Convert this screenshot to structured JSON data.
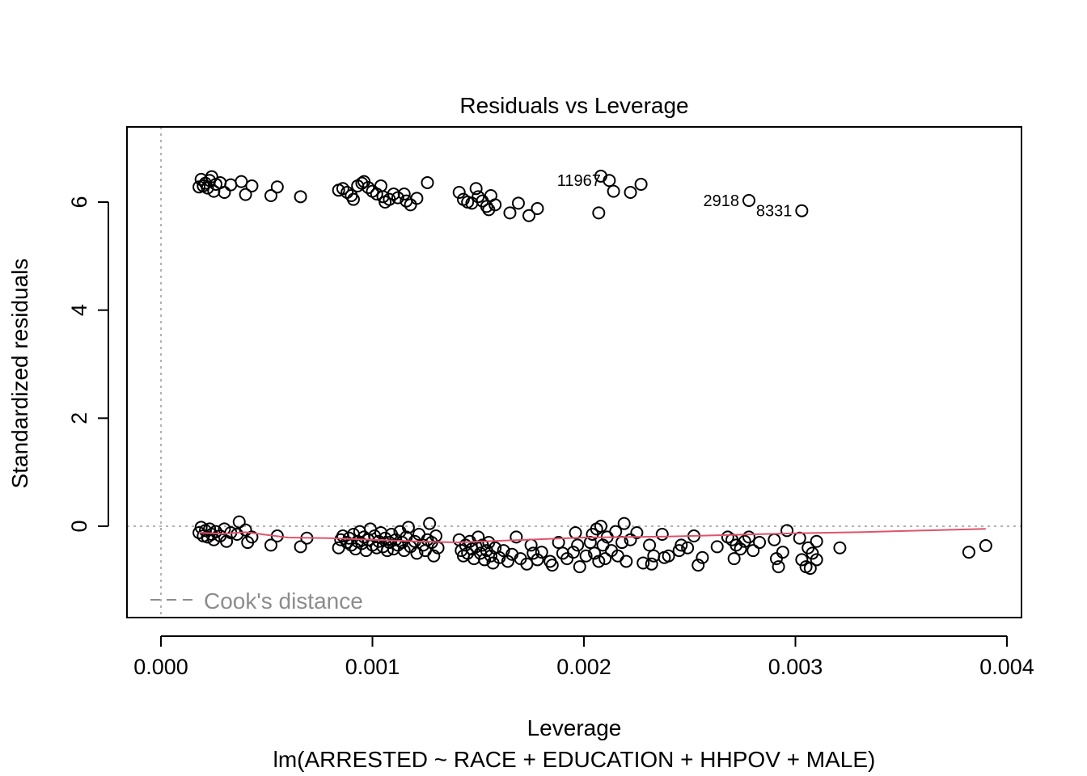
{
  "chart_data": {
    "type": "scatter",
    "title": "Residuals vs Leverage",
    "xlabel": "Leverage",
    "subtitle": "lm(ARRESTED ~ RACE + EDUCATION + HHPOV + MALE)",
    "ylabel": "Standardized residuals",
    "xlim": [
      -0.00016,
      0.004
    ],
    "ylim": [
      -1.7,
      7.4
    ],
    "x_ticks": [
      "0.000",
      "0.001",
      "0.002",
      "0.003",
      "0.004"
    ],
    "y_ticks": [
      "0",
      "2",
      "4",
      "6"
    ],
    "x_tick_values": [
      0,
      0.001,
      0.002,
      0.003,
      0.004
    ],
    "y_tick_values": [
      0,
      2,
      4,
      6
    ],
    "reference_lines": {
      "h": 0,
      "v": 0,
      "style": "dotted",
      "color": "#b3b3b3"
    },
    "legend": {
      "position": "bottom-left",
      "entries": [
        {
          "label": "Cook's distance",
          "style": "dashed",
          "color": "#8c8c8c"
        }
      ]
    },
    "smooth_color": "#df536b",
    "smooth_line": {
      "x": [
        0.00018,
        0.0003,
        0.0004,
        0.0006,
        0.0008,
        0.001,
        0.0012,
        0.0014,
        0.0016,
        0.0018,
        0.002,
        0.0022,
        0.0024,
        0.0026,
        0.0028,
        0.003,
        0.0033,
        0.0036,
        0.0039
      ],
      "y": [
        -0.12,
        -0.14,
        -0.11,
        -0.21,
        -0.22,
        -0.25,
        -0.28,
        -0.3,
        -0.27,
        -0.24,
        -0.21,
        -0.2,
        -0.19,
        -0.17,
        -0.15,
        -0.13,
        -0.11,
        -0.08,
        -0.05
      ]
    },
    "labeled_points": [
      {
        "label": "11967",
        "x": 0.00208,
        "y": 6.48
      },
      {
        "label": "2918",
        "x": 0.00278,
        "y": 6.03
      },
      {
        "label": "8331",
        "x": 0.00303,
        "y": 5.84
      }
    ],
    "points": [
      [
        0.00018,
        6.28
      ],
      [
        0.00019,
        6.42
      ],
      [
        0.0002,
        6.3
      ],
      [
        0.00021,
        6.35
      ],
      [
        0.00022,
        6.26
      ],
      [
        0.00023,
        6.4
      ],
      [
        0.00024,
        6.47
      ],
      [
        0.00025,
        6.2
      ],
      [
        0.00026,
        6.33
      ],
      [
        0.00028,
        6.36
      ],
      [
        0.0003,
        6.18
      ],
      [
        0.00033,
        6.32
      ],
      [
        0.00038,
        6.38
      ],
      [
        0.0004,
        6.14
      ],
      [
        0.00043,
        6.3
      ],
      [
        0.00052,
        6.12
      ],
      [
        0.00055,
        6.28
      ],
      [
        0.00066,
        6.1
      ],
      [
        0.00084,
        6.22
      ],
      [
        0.00086,
        6.25
      ],
      [
        0.00088,
        6.18
      ],
      [
        0.0009,
        6.12
      ],
      [
        0.00091,
        6.05
      ],
      [
        0.00093,
        6.3
      ],
      [
        0.00095,
        6.35
      ],
      [
        0.00096,
        6.38
      ],
      [
        0.00098,
        6.27
      ],
      [
        0.001,
        6.2
      ],
      [
        0.00102,
        6.15
      ],
      [
        0.00104,
        6.3
      ],
      [
        0.00105,
        6.1
      ],
      [
        0.00106,
        6.0
      ],
      [
        0.00108,
        6.05
      ],
      [
        0.0011,
        6.15
      ],
      [
        0.00112,
        6.08
      ],
      [
        0.00115,
        6.15
      ],
      [
        0.00116,
        6.02
      ],
      [
        0.00118,
        5.95
      ],
      [
        0.00121,
        6.07
      ],
      [
        0.00126,
        6.36
      ],
      [
        0.00141,
        6.18
      ],
      [
        0.00143,
        6.05
      ],
      [
        0.00145,
        6.0
      ],
      [
        0.00147,
        5.98
      ],
      [
        0.00149,
        6.25
      ],
      [
        0.0015,
        6.1
      ],
      [
        0.00152,
        6.02
      ],
      [
        0.00154,
        5.92
      ],
      [
        0.00155,
        5.86
      ],
      [
        0.00156,
        6.12
      ],
      [
        0.00158,
        5.95
      ],
      [
        0.00165,
        5.8
      ],
      [
        0.00169,
        5.98
      ],
      [
        0.00174,
        5.75
      ],
      [
        0.00178,
        5.88
      ],
      [
        0.00207,
        5.8
      ],
      [
        0.00212,
        6.4
      ],
      [
        0.00214,
        6.2
      ],
      [
        0.00222,
        6.18
      ],
      [
        0.00227,
        6.33
      ],
      [
        0.00018,
        -0.12
      ],
      [
        0.00019,
        -0.02
      ],
      [
        0.0002,
        -0.18
      ],
      [
        0.00021,
        -0.08
      ],
      [
        0.00022,
        -0.2
      ],
      [
        0.00023,
        -0.05
      ],
      [
        0.00024,
        -0.15
      ],
      [
        0.00025,
        -0.25
      ],
      [
        0.00026,
        -0.1
      ],
      [
        0.00028,
        -0.18
      ],
      [
        0.0003,
        -0.05
      ],
      [
        0.00031,
        -0.28
      ],
      [
        0.00033,
        -0.12
      ],
      [
        0.00036,
        -0.15
      ],
      [
        0.00037,
        0.08
      ],
      [
        0.0004,
        -0.07
      ],
      [
        0.00041,
        -0.3
      ],
      [
        0.00043,
        -0.2
      ],
      [
        0.00052,
        -0.35
      ],
      [
        0.00055,
        -0.18
      ],
      [
        0.00066,
        -0.38
      ],
      [
        0.00069,
        -0.22
      ],
      [
        0.00084,
        -0.4
      ],
      [
        0.00085,
        -0.25
      ],
      [
        0.00086,
        -0.18
      ],
      [
        0.00088,
        -0.3
      ],
      [
        0.00089,
        -0.22
      ],
      [
        0.0009,
        -0.35
      ],
      [
        0.00091,
        -0.15
      ],
      [
        0.00092,
        -0.42
      ],
      [
        0.00093,
        -0.28
      ],
      [
        0.00094,
        -0.1
      ],
      [
        0.00095,
        -0.32
      ],
      [
        0.00096,
        -0.2
      ],
      [
        0.00097,
        -0.45
      ],
      [
        0.00098,
        -0.25
      ],
      [
        0.00099,
        -0.05
      ],
      [
        0.001,
        -0.35
      ],
      [
        0.00101,
        -0.18
      ],
      [
        0.00102,
        -0.4
      ],
      [
        0.00103,
        -0.28
      ],
      [
        0.00104,
        -0.12
      ],
      [
        0.00105,
        -0.38
      ],
      [
        0.00106,
        -0.22
      ],
      [
        0.00107,
        -0.45
      ],
      [
        0.00108,
        -0.3
      ],
      [
        0.00109,
        -0.15
      ],
      [
        0.0011,
        -0.42
      ],
      [
        0.00111,
        -0.25
      ],
      [
        0.00112,
        -0.35
      ],
      [
        0.00113,
        -0.1
      ],
      [
        0.00114,
        -0.3
      ],
      [
        0.00115,
        -0.45
      ],
      [
        0.00116,
        -0.2
      ],
      [
        0.00117,
        -0.02
      ],
      [
        0.00118,
        -0.38
      ],
      [
        0.0012,
        -0.28
      ],
      [
        0.00121,
        -0.5
      ],
      [
        0.00122,
        -0.15
      ],
      [
        0.00124,
        -0.35
      ],
      [
        0.00125,
        -0.45
      ],
      [
        0.00126,
        -0.25
      ],
      [
        0.00127,
        0.05
      ],
      [
        0.00128,
        -0.3
      ],
      [
        0.00129,
        -0.55
      ],
      [
        0.0013,
        -0.18
      ],
      [
        0.00131,
        -0.4
      ],
      [
        0.00141,
        -0.25
      ],
      [
        0.00142,
        -0.45
      ],
      [
        0.00143,
        -0.55
      ],
      [
        0.00144,
        -0.35
      ],
      [
        0.00145,
        -0.5
      ],
      [
        0.00146,
        -0.28
      ],
      [
        0.00147,
        -0.42
      ],
      [
        0.00148,
        -0.6
      ],
      [
        0.00149,
        -0.38
      ],
      [
        0.0015,
        -0.2
      ],
      [
        0.00151,
        -0.5
      ],
      [
        0.00152,
        -0.35
      ],
      [
        0.00153,
        -0.62
      ],
      [
        0.00154,
        -0.45
      ],
      [
        0.00155,
        -0.3
      ],
      [
        0.00156,
        -0.55
      ],
      [
        0.00157,
        -0.68
      ],
      [
        0.00158,
        -0.4
      ],
      [
        0.0016,
        -0.58
      ],
      [
        0.00162,
        -0.45
      ],
      [
        0.00164,
        -0.65
      ],
      [
        0.00166,
        -0.52
      ],
      [
        0.00168,
        -0.2
      ],
      [
        0.0017,
        -0.6
      ],
      [
        0.00173,
        -0.7
      ],
      [
        0.00175,
        -0.35
      ],
      [
        0.00176,
        -0.5
      ],
      [
        0.00178,
        -0.62
      ],
      [
        0.0018,
        -0.48
      ],
      [
        0.00184,
        -0.65
      ],
      [
        0.00185,
        -0.72
      ],
      [
        0.00188,
        -0.3
      ],
      [
        0.0019,
        -0.5
      ],
      [
        0.00192,
        -0.6
      ],
      [
        0.00195,
        -0.48
      ],
      [
        0.00196,
        -0.12
      ],
      [
        0.00197,
        -0.35
      ],
      [
        0.00198,
        -0.75
      ],
      [
        0.00201,
        -0.55
      ],
      [
        0.00203,
        -0.3
      ],
      [
        0.00204,
        -0.15
      ],
      [
        0.00205,
        -0.5
      ],
      [
        0.00206,
        -0.05
      ],
      [
        0.00207,
        -0.65
      ],
      [
        0.00208,
        0.0
      ],
      [
        0.00209,
        -0.35
      ],
      [
        0.0021,
        -0.6
      ],
      [
        0.00211,
        -0.2
      ],
      [
        0.00213,
        -0.45
      ],
      [
        0.00215,
        -0.1
      ],
      [
        0.00216,
        -0.55
      ],
      [
        0.00218,
        -0.3
      ],
      [
        0.00219,
        0.05
      ],
      [
        0.0022,
        -0.65
      ],
      [
        0.00222,
        -0.25
      ],
      [
        0.00225,
        -0.12
      ],
      [
        0.00228,
        -0.68
      ],
      [
        0.00231,
        -0.35
      ],
      [
        0.00232,
        -0.7
      ],
      [
        0.00233,
        -0.55
      ],
      [
        0.00237,
        -0.15
      ],
      [
        0.00238,
        -0.58
      ],
      [
        0.0024,
        -0.55
      ],
      [
        0.00245,
        -0.45
      ],
      [
        0.00246,
        -0.35
      ],
      [
        0.00249,
        -0.4
      ],
      [
        0.00252,
        -0.18
      ],
      [
        0.00254,
        -0.72
      ],
      [
        0.00256,
        -0.58
      ],
      [
        0.00263,
        -0.38
      ],
      [
        0.00268,
        -0.2
      ],
      [
        0.0027,
        -0.25
      ],
      [
        0.00271,
        -0.6
      ],
      [
        0.00272,
        -0.35
      ],
      [
        0.00274,
        -0.42
      ],
      [
        0.00276,
        -0.28
      ],
      [
        0.00278,
        -0.2
      ],
      [
        0.0028,
        -0.45
      ],
      [
        0.00283,
        -0.3
      ],
      [
        0.0029,
        -0.25
      ],
      [
        0.00291,
        -0.6
      ],
      [
        0.00292,
        -0.75
      ],
      [
        0.00294,
        -0.48
      ],
      [
        0.00296,
        -0.08
      ],
      [
        0.00302,
        -0.22
      ],
      [
        0.00303,
        -0.62
      ],
      [
        0.00305,
        -0.75
      ],
      [
        0.00306,
        -0.4
      ],
      [
        0.00307,
        -0.78
      ],
      [
        0.00308,
        -0.5
      ],
      [
        0.0031,
        -0.62
      ],
      [
        0.0031,
        -0.28
      ],
      [
        0.00321,
        -0.4
      ],
      [
        0.00382,
        -0.48
      ],
      [
        0.0039,
        -0.36
      ]
    ]
  }
}
